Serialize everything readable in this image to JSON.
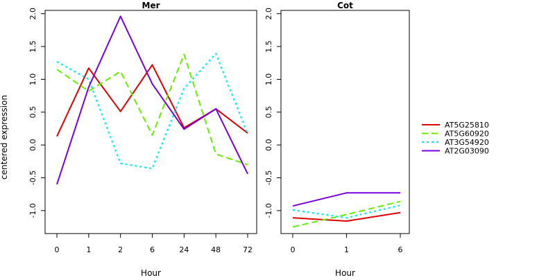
{
  "ylabel": "centered expression",
  "legend": {
    "entries": [
      {
        "name": "AT5G25810",
        "color": "#dd0000",
        "dash": "solid"
      },
      {
        "name": "AT5G60920",
        "color": "#66ee00",
        "dash": "dashed"
      },
      {
        "name": "AT3G54920",
        "color": "#00eeee",
        "dash": "dotted"
      },
      {
        "name": "AT2G03090",
        "color": "#7700dd",
        "dash": "solid"
      }
    ]
  },
  "chart_data": [
    {
      "type": "line",
      "title": "Mer",
      "xlabel": "Hour",
      "ylabel": "centered expression",
      "categories": [
        "0",
        "1",
        "2",
        "6",
        "24",
        "48",
        "72"
      ],
      "ylim": [
        -1.35,
        2.05
      ],
      "yticks": [
        -1.0,
        -0.5,
        0.0,
        0.5,
        1.0,
        1.5,
        2.0
      ],
      "grid": false,
      "series": [
        {
          "name": "AT5G25810",
          "values": [
            0.13,
            1.17,
            0.51,
            1.22,
            0.26,
            0.55,
            0.18
          ]
        },
        {
          "name": "AT5G60920",
          "values": [
            1.15,
            0.82,
            1.12,
            0.15,
            1.38,
            -0.14,
            -0.3
          ]
        },
        {
          "name": "AT3G54920",
          "values": [
            1.27,
            1.0,
            -0.28,
            -0.36,
            0.86,
            1.39,
            0.17
          ]
        },
        {
          "name": "AT2G03090",
          "values": [
            -0.6,
            0.88,
            1.96,
            0.93,
            0.24,
            0.55,
            -0.44
          ]
        }
      ]
    },
    {
      "type": "line",
      "title": "Cot",
      "xlabel": "Hour",
      "categories": [
        "0",
        "1",
        "6"
      ],
      "ylim": [
        -1.35,
        2.05
      ],
      "yticks": [
        -1.0,
        -0.5,
        0.0,
        0.5,
        1.0,
        1.5,
        2.0
      ],
      "grid": false,
      "series": [
        {
          "name": "AT5G25810",
          "values": [
            -1.11,
            -1.16,
            -1.03
          ]
        },
        {
          "name": "AT5G60920",
          "values": [
            -1.25,
            -1.06,
            -0.86
          ]
        },
        {
          "name": "AT3G54920",
          "values": [
            -0.99,
            -1.11,
            -0.92
          ]
        },
        {
          "name": "AT2G03090",
          "values": [
            -0.93,
            -0.73,
            -0.73
          ]
        }
      ]
    }
  ]
}
